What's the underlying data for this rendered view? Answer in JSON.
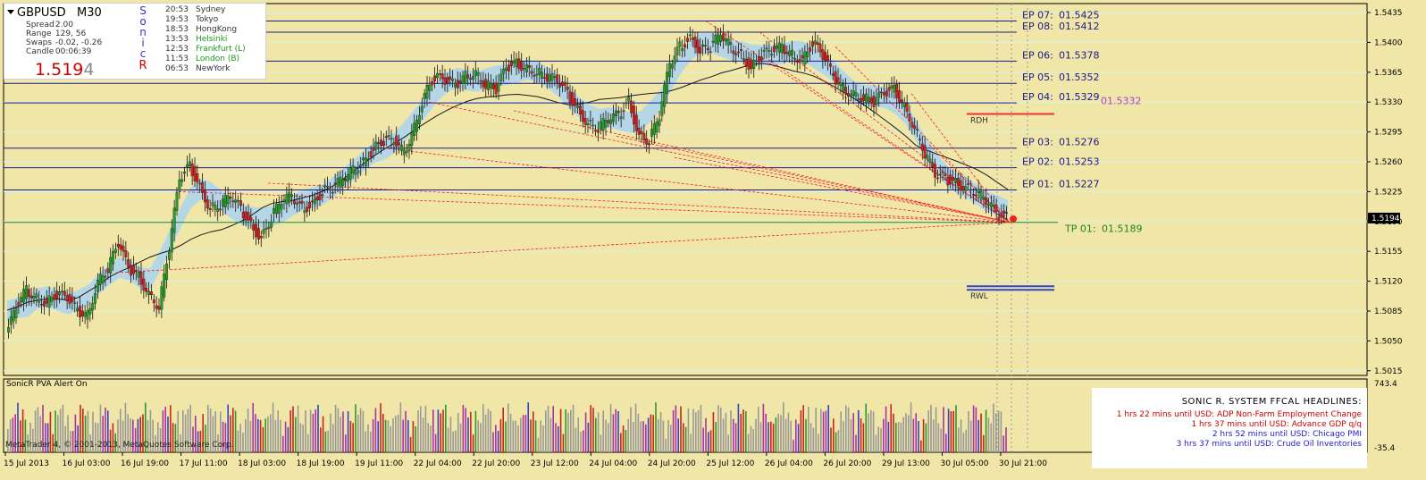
{
  "header": {
    "symbol": "GBPUSD",
    "timeframe": "M30",
    "stats": [
      {
        "label": "Spread",
        "value": "2.00"
      },
      {
        "label": "Range",
        "value": "129, 56"
      },
      {
        "label": "Swaps",
        "value": "-0.02, -0.26"
      },
      {
        "label": "Candle",
        "value": "00:06:39"
      }
    ],
    "price_main": "1.519",
    "price_last": "4",
    "sonic_letters": [
      "S",
      "o",
      "n",
      "i",
      "c",
      "R"
    ],
    "sessions": [
      {
        "time": "20:53",
        "city": "Sydney",
        "color": "#333333"
      },
      {
        "time": "19:53",
        "city": "Tokyo",
        "color": "#333333"
      },
      {
        "time": "18:53",
        "city": "HongKong",
        "color": "#333333"
      },
      {
        "time": "13:53",
        "city": "Helsinki",
        "color": "#1a9a1a"
      },
      {
        "time": "12:53",
        "city": "Frankfurt  (L)",
        "color": "#1a9a1a"
      },
      {
        "time": "11:53",
        "city": "London  (B)",
        "color": "#1a9a1a"
      },
      {
        "time": "06:53",
        "city": "NewYork",
        "color": "#333333"
      }
    ]
  },
  "chart_data": {
    "type": "candlestick",
    "ylim": [
      1.50095,
      1.54455
    ],
    "y_ticks": [
      "1.5435",
      "1.5400",
      "1.5365",
      "1.5330",
      "1.5295",
      "1.5260",
      "1.5225",
      "1.5190",
      "1.5155",
      "1.5120",
      "1.5085",
      "1.5050",
      "1.5015"
    ],
    "x_ticks": [
      "15 Jul 2013",
      "16 Jul 03:00",
      "16 Jul 19:00",
      "17 Jul 11:00",
      "18 Jul 03:00",
      "18 Jul 19:00",
      "19 Jul 11:00",
      "22 Jul 04:00",
      "22 Jul 20:00",
      "23 Jul 12:00",
      "24 Jul 04:00",
      "24 Jul 20:00",
      "25 Jul 12:00",
      "26 Jul 04:00",
      "26 Jul 20:00",
      "29 Jul 13:00",
      "30 Jul 05:00",
      "30 Jul 21:00"
    ],
    "current_price": "1.5194",
    "price_path": [
      1.5055,
      1.509,
      1.511,
      1.51,
      1.5095,
      1.5105,
      1.51,
      1.5085,
      1.508,
      1.512,
      1.5135,
      1.5165,
      1.5135,
      1.5125,
      1.5105,
      1.509,
      1.516,
      1.524,
      1.5255,
      1.523,
      1.5205,
      1.521,
      1.522,
      1.5205,
      1.5185,
      1.517,
      1.5195,
      1.5215,
      1.522,
      1.5205,
      1.521,
      1.5225,
      1.523,
      1.524,
      1.525,
      1.526,
      1.5275,
      1.5285,
      1.5285,
      1.527,
      1.53,
      1.534,
      1.536,
      1.5355,
      1.535,
      1.536,
      1.5365,
      1.535,
      1.5345,
      1.537,
      1.5375,
      1.537,
      1.5365,
      1.536,
      1.5355,
      1.534,
      1.532,
      1.5305,
      1.53,
      1.531,
      1.5315,
      1.533,
      1.529,
      1.5285,
      1.5315,
      1.5375,
      1.5395,
      1.5405,
      1.539,
      1.5395,
      1.541,
      1.5395,
      1.5385,
      1.537,
      1.5385,
      1.539,
      1.5395,
      1.5385,
      1.538,
      1.54,
      1.5385,
      1.536,
      1.5345,
      1.534,
      1.5335,
      1.533,
      1.534,
      1.5345,
      1.5325,
      1.53,
      1.527,
      1.5245,
      1.524,
      1.5235,
      1.523,
      1.5225,
      1.5215,
      1.52,
      1.5194
    ],
    "entry_points": [
      {
        "label": "EP 07:",
        "value": "01.5425",
        "y": 1.5425
      },
      {
        "label": "EP 08:",
        "value": "01.5412",
        "y": 1.5412
      },
      {
        "label": "EP 06:",
        "value": "01.5378",
        "y": 1.5378
      },
      {
        "label": "EP 05:",
        "value": "01.5352",
        "y": 1.5352
      },
      {
        "label": "EP 04:",
        "value": "01.5329",
        "y": 1.5329
      },
      {
        "label": "EP 03:",
        "value": "01.5276",
        "y": 1.5276
      },
      {
        "label": "EP 02:",
        "value": "01.5253",
        "y": 1.5253
      },
      {
        "label": "EP 01:",
        "value": "01.5227",
        "y": 1.5227
      }
    ],
    "take_profit": {
      "label": "TP 01:",
      "value": "01.5189",
      "y": 1.5189
    },
    "overlay_value": {
      "text": "01.5332",
      "y": 1.5332
    },
    "levels": [
      {
        "label": "RDH",
        "y": 1.5316
      },
      {
        "label": "RWL",
        "y": 1.5112
      }
    ],
    "indicator": {
      "label": "SonicR PVA  Alert On",
      "ylim": [
        -35.4,
        743.4
      ],
      "y_ticks": [
        "743.4",
        "-35.4"
      ]
    }
  },
  "ffcal": {
    "title": "SONIC R. SYSTEM  FFCAL HEADLINES:",
    "items": [
      {
        "text": "1 hrs 22 mins until USD: ADP Non-Farm Employment Change",
        "color": "#cc0000"
      },
      {
        "text": "1 hrs 37 mins until USD: Advance GDP q/q",
        "color": "#cc0000"
      },
      {
        "text": "2 hrs 52 mins until USD: Chicago PMI",
        "color": "#2222cc"
      },
      {
        "text": "3 hrs 37 mins until USD: Crude Oil Inventories",
        "color": "#2222cc"
      }
    ]
  },
  "footer": {
    "copyright": "MetaTrader 4, © 2001-2013, MetaQuotes Software Corp."
  },
  "colors": {
    "background": "#f0e6a8",
    "axis": "#000000",
    "ep_line": "#1a1a8c",
    "tp_line": "#228822",
    "ep_text": "#1a1a8c",
    "tp_text": "#1a8a1a",
    "fan": "#ee2222",
    "ema_band": "#aad4f0",
    "ema_slow": "#1a1a1a",
    "overlay_text": "#aa44cc",
    "rdh_line": "#ee3333",
    "rwl_line": "#3344cc"
  }
}
